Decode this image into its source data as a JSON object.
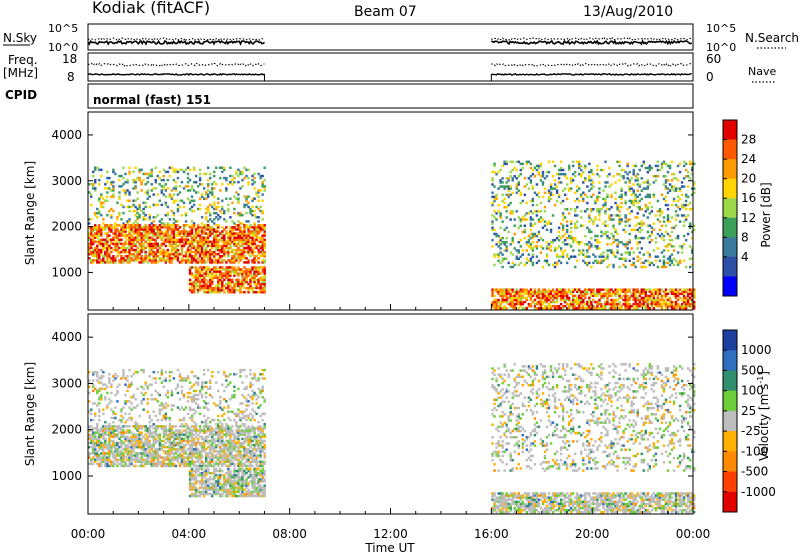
{
  "header": {
    "station": "Kodiak (fitACF)",
    "beam": "Beam 07",
    "date": "13/Aug/2010"
  },
  "top_panels": {
    "nsky_label": "N.Sky",
    "nsearch_label": "N.Search",
    "nsky_ticks": [
      "10^5",
      "10^0"
    ],
    "nsearch_ticks": [
      "10^5",
      "10^0"
    ],
    "freq_label_1": "Freq.",
    "freq_label_2": "[MHz]",
    "freq_ticks": [
      "18",
      "8"
    ],
    "nave_label": "Nave",
    "nave_ticks": [
      "60",
      "0"
    ],
    "cpid_label": "CPID",
    "cpid_value": "normal (fast) 151"
  },
  "chart_data": [
    {
      "type": "heatmap",
      "panel": "power",
      "ylabel": "Slant Range [km]",
      "ylim": [
        180,
        4500
      ],
      "yticks": [
        "1000",
        "2000",
        "3000",
        "4000"
      ],
      "xlim": [
        0,
        24
      ],
      "colorbar_label": "Power [dB]",
      "colorbar_ticks": [
        "28",
        "24",
        "20",
        "16",
        "12",
        "8",
        "4"
      ],
      "colorbar_colors": [
        "#e00000",
        "#ff5a00",
        "#ff9a00",
        "#ffd400",
        "#9bd94b",
        "#3aa05a",
        "#3a7a9c",
        "#2d4fa8",
        "#0000ff"
      ],
      "data_blocks": [
        {
          "t0": 0.0,
          "t1": 7.0,
          "r0": 2050,
          "r1": 3300,
          "density": "sparse"
        },
        {
          "t0": 0.0,
          "t1": 7.0,
          "r0": 1200,
          "r1": 2050,
          "density": "dense"
        },
        {
          "t0": 4.0,
          "t1": 7.0,
          "r0": 550,
          "r1": 1100,
          "density": "dense"
        },
        {
          "t0": 16.0,
          "t1": 24.0,
          "r0": 1100,
          "r1": 3400,
          "density": "sparse"
        },
        {
          "t0": 16.0,
          "t1": 24.0,
          "r0": 200,
          "r1": 650,
          "density": "dense"
        }
      ]
    },
    {
      "type": "heatmap",
      "panel": "velocity",
      "ylabel": "Slant Range [km]",
      "ylim": [
        180,
        4500
      ],
      "yticks": [
        "1000",
        "2000",
        "3000",
        "4000"
      ],
      "xlim": [
        0,
        24
      ],
      "xticks": [
        "00:00",
        "04:00",
        "08:00",
        "12:00",
        "16:00",
        "20:00",
        "00:00"
      ],
      "xlabel": "Time UT",
      "colorbar_label": "Velocity [m s",
      "colorbar_label_sup": "-1",
      "colorbar_label_end": "]",
      "colorbar_ticks": [
        "1000",
        "500",
        "100",
        "25",
        "-25",
        "-100",
        "-500",
        "-1000"
      ],
      "colorbar_colors": [
        "#1c3fa0",
        "#2e6fbf",
        "#2f8f6e",
        "#6ccf3a",
        "#bdbdbd",
        "#ffb000",
        "#ff8a00",
        "#ff4000",
        "#e00000"
      ],
      "data_blocks": [
        {
          "t0": 0.0,
          "t1": 7.0,
          "r0": 2100,
          "r1": 3300,
          "density": "sparse"
        },
        {
          "t0": 0.0,
          "t1": 7.0,
          "r0": 1200,
          "r1": 2100,
          "density": "dense"
        },
        {
          "t0": 4.0,
          "t1": 7.0,
          "r0": 550,
          "r1": 1150,
          "density": "dense"
        },
        {
          "t0": 16.0,
          "t1": 24.0,
          "r0": 1100,
          "r1": 3400,
          "density": "sparse"
        },
        {
          "t0": 16.0,
          "t1": 24.0,
          "r0": 200,
          "r1": 650,
          "density": "dense"
        }
      ]
    }
  ]
}
